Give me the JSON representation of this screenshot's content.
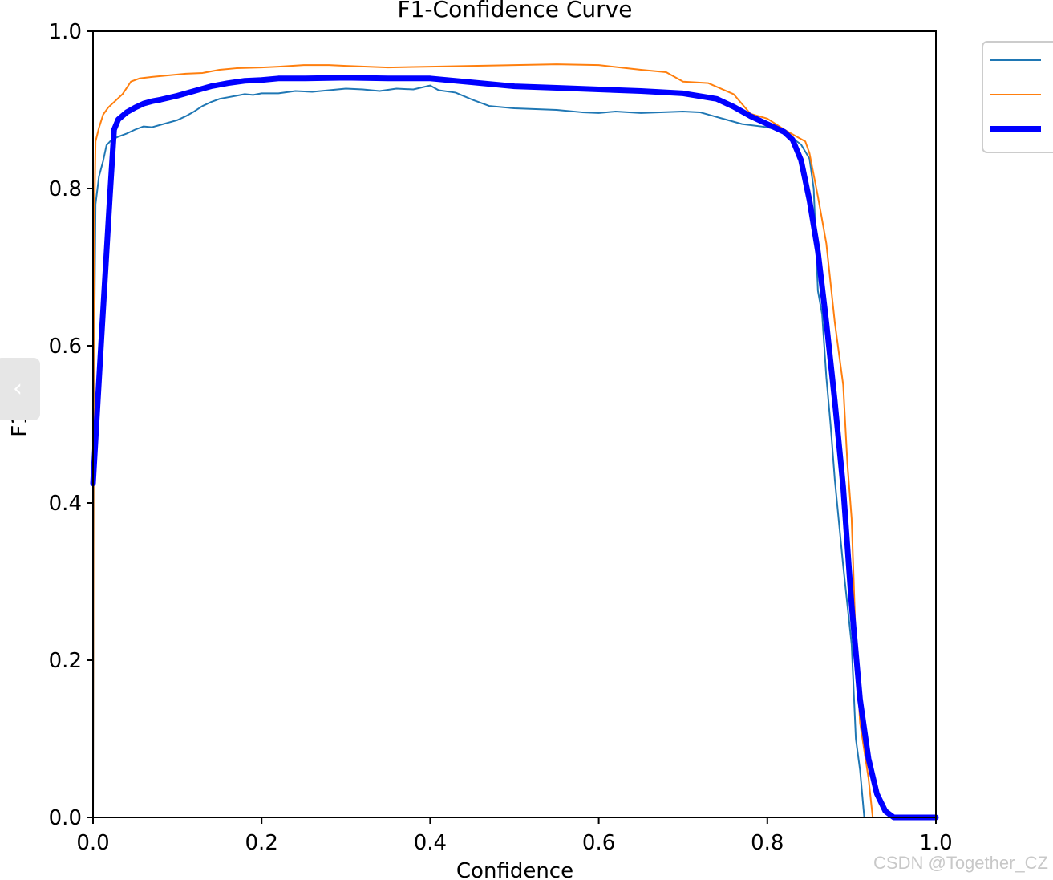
{
  "chart_data": {
    "type": "line",
    "title": "F1-Confidence Curve",
    "xlabel": "Confidence",
    "ylabel": "F1",
    "xlim": [
      0,
      1
    ],
    "ylim": [
      0,
      1
    ],
    "x_ticks": [
      "0.0",
      "0.2",
      "0.4",
      "0.6",
      "0.8",
      "1.0"
    ],
    "y_ticks": [
      "0.0",
      "0.2",
      "0.4",
      "0.6",
      "0.8",
      "1.0"
    ],
    "grid": false,
    "legend": "upper-right, outside plot, labels not visible",
    "series": [
      {
        "color": "#1f77b4",
        "line_width": "thin",
        "points": [
          [
            0.0,
            0.0
          ],
          [
            0.001,
            0.55
          ],
          [
            0.003,
            0.78
          ],
          [
            0.007,
            0.815
          ],
          [
            0.012,
            0.835
          ],
          [
            0.016,
            0.855
          ],
          [
            0.022,
            0.862
          ],
          [
            0.03,
            0.866
          ],
          [
            0.04,
            0.87
          ],
          [
            0.05,
            0.875
          ],
          [
            0.06,
            0.879
          ],
          [
            0.07,
            0.878
          ],
          [
            0.08,
            0.881
          ],
          [
            0.09,
            0.884
          ],
          [
            0.1,
            0.887
          ],
          [
            0.11,
            0.892
          ],
          [
            0.12,
            0.898
          ],
          [
            0.13,
            0.905
          ],
          [
            0.14,
            0.91
          ],
          [
            0.15,
            0.914
          ],
          [
            0.16,
            0.916
          ],
          [
            0.17,
            0.918
          ],
          [
            0.18,
            0.92
          ],
          [
            0.19,
            0.919
          ],
          [
            0.2,
            0.921
          ],
          [
            0.22,
            0.921
          ],
          [
            0.24,
            0.924
          ],
          [
            0.26,
            0.923
          ],
          [
            0.28,
            0.925
          ],
          [
            0.3,
            0.927
          ],
          [
            0.32,
            0.926
          ],
          [
            0.34,
            0.924
          ],
          [
            0.36,
            0.927
          ],
          [
            0.38,
            0.926
          ],
          [
            0.4,
            0.931
          ],
          [
            0.41,
            0.925
          ],
          [
            0.43,
            0.922
          ],
          [
            0.45,
            0.913
          ],
          [
            0.47,
            0.905
          ],
          [
            0.5,
            0.902
          ],
          [
            0.55,
            0.9
          ],
          [
            0.58,
            0.897
          ],
          [
            0.6,
            0.896
          ],
          [
            0.62,
            0.898
          ],
          [
            0.65,
            0.896
          ],
          [
            0.7,
            0.898
          ],
          [
            0.72,
            0.897
          ],
          [
            0.75,
            0.888
          ],
          [
            0.77,
            0.882
          ],
          [
            0.8,
            0.878
          ],
          [
            0.82,
            0.872
          ],
          [
            0.84,
            0.856
          ],
          [
            0.85,
            0.838
          ],
          [
            0.855,
            0.8
          ],
          [
            0.86,
            0.67
          ],
          [
            0.865,
            0.64
          ],
          [
            0.87,
            0.56
          ],
          [
            0.875,
            0.5
          ],
          [
            0.88,
            0.43
          ],
          [
            0.89,
            0.32
          ],
          [
            0.9,
            0.22
          ],
          [
            0.905,
            0.1
          ],
          [
            0.91,
            0.06
          ],
          [
            0.915,
            0.0
          ],
          [
            1.0,
            0.0
          ]
        ]
      },
      {
        "color": "#ff7f0e",
        "line_width": "thin",
        "points": [
          [
            0.0,
            0.0
          ],
          [
            0.001,
            0.72
          ],
          [
            0.003,
            0.86
          ],
          [
            0.007,
            0.877
          ],
          [
            0.012,
            0.894
          ],
          [
            0.018,
            0.903
          ],
          [
            0.025,
            0.91
          ],
          [
            0.035,
            0.92
          ],
          [
            0.045,
            0.936
          ],
          [
            0.055,
            0.94
          ],
          [
            0.07,
            0.942
          ],
          [
            0.09,
            0.944
          ],
          [
            0.11,
            0.946
          ],
          [
            0.13,
            0.947
          ],
          [
            0.15,
            0.951
          ],
          [
            0.17,
            0.953
          ],
          [
            0.2,
            0.954
          ],
          [
            0.22,
            0.955
          ],
          [
            0.25,
            0.957
          ],
          [
            0.28,
            0.957
          ],
          [
            0.3,
            0.956
          ],
          [
            0.35,
            0.954
          ],
          [
            0.4,
            0.955
          ],
          [
            0.45,
            0.956
          ],
          [
            0.5,
            0.957
          ],
          [
            0.55,
            0.958
          ],
          [
            0.6,
            0.957
          ],
          [
            0.65,
            0.951
          ],
          [
            0.68,
            0.948
          ],
          [
            0.7,
            0.936
          ],
          [
            0.73,
            0.934
          ],
          [
            0.76,
            0.92
          ],
          [
            0.78,
            0.895
          ],
          [
            0.8,
            0.889
          ],
          [
            0.82,
            0.875
          ],
          [
            0.835,
            0.866
          ],
          [
            0.845,
            0.86
          ],
          [
            0.85,
            0.845
          ],
          [
            0.86,
            0.79
          ],
          [
            0.87,
            0.73
          ],
          [
            0.875,
            0.68
          ],
          [
            0.88,
            0.63
          ],
          [
            0.89,
            0.55
          ],
          [
            0.895,
            0.45
          ],
          [
            0.9,
            0.38
          ],
          [
            0.905,
            0.22
          ],
          [
            0.91,
            0.12
          ],
          [
            0.92,
            0.05
          ],
          [
            0.925,
            0.0
          ],
          [
            1.0,
            0.0
          ]
        ]
      },
      {
        "color": "#0000ff",
        "line_width": "thick",
        "points": [
          [
            0.0,
            0.425
          ],
          [
            0.01,
            0.61
          ],
          [
            0.02,
            0.79
          ],
          [
            0.025,
            0.875
          ],
          [
            0.03,
            0.888
          ],
          [
            0.04,
            0.897
          ],
          [
            0.05,
            0.903
          ],
          [
            0.06,
            0.908
          ],
          [
            0.07,
            0.911
          ],
          [
            0.08,
            0.913
          ],
          [
            0.1,
            0.918
          ],
          [
            0.12,
            0.924
          ],
          [
            0.14,
            0.93
          ],
          [
            0.16,
            0.934
          ],
          [
            0.18,
            0.937
          ],
          [
            0.2,
            0.938
          ],
          [
            0.22,
            0.94
          ],
          [
            0.25,
            0.94
          ],
          [
            0.3,
            0.941
          ],
          [
            0.35,
            0.94
          ],
          [
            0.4,
            0.94
          ],
          [
            0.45,
            0.935
          ],
          [
            0.5,
            0.93
          ],
          [
            0.55,
            0.928
          ],
          [
            0.6,
            0.926
          ],
          [
            0.65,
            0.924
          ],
          [
            0.7,
            0.921
          ],
          [
            0.74,
            0.914
          ],
          [
            0.76,
            0.904
          ],
          [
            0.78,
            0.892
          ],
          [
            0.8,
            0.882
          ],
          [
            0.82,
            0.872
          ],
          [
            0.83,
            0.862
          ],
          [
            0.84,
            0.836
          ],
          [
            0.85,
            0.785
          ],
          [
            0.86,
            0.72
          ],
          [
            0.87,
            0.63
          ],
          [
            0.88,
            0.53
          ],
          [
            0.89,
            0.42
          ],
          [
            0.9,
            0.27
          ],
          [
            0.91,
            0.15
          ],
          [
            0.92,
            0.075
          ],
          [
            0.93,
            0.03
          ],
          [
            0.94,
            0.008
          ],
          [
            0.95,
            0.0
          ],
          [
            1.0,
            0.0
          ]
        ]
      }
    ]
  },
  "ui": {
    "side_tab_glyph": "‹",
    "watermark": "CSDN @Together_CZ"
  }
}
